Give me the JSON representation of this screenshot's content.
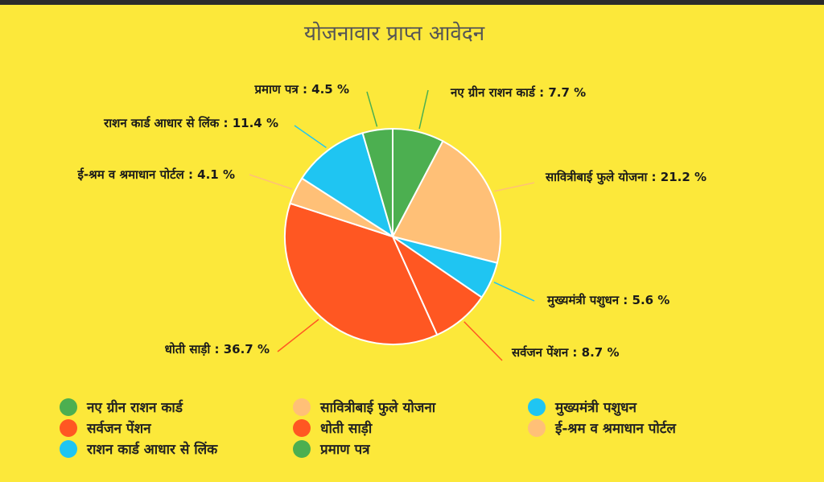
{
  "chart_data": {
    "type": "pie",
    "title": "योजनावार प्राप्त आवेदन",
    "slices": [
      {
        "label": "नए ग्रीन राशन कार्ड",
        "value": 7.7,
        "text": "नए ग्रीन राशन कार्ड : 7.7 %",
        "color": "#4CAF50"
      },
      {
        "label": "सावित्रीबाई फुले योजना",
        "value": 21.2,
        "text": "सावित्रीबाई फुले योजना : 21.2 %",
        "color": "#FFC077"
      },
      {
        "label": "मुख्यमंत्री पशुधन",
        "value": 5.6,
        "text": "मुख्यमंत्री पशुधन : 5.6 %",
        "color": "#1FC5F2"
      },
      {
        "label": "सर्वजन पेंशन",
        "value": 8.7,
        "text": "सर्वजन पेंशन : 8.7 %",
        "color": "#FF5722"
      },
      {
        "label": "धोती साड़ी",
        "value": 36.7,
        "text": "धोती साड़ी : 36.7 %",
        "color": "#FF5722"
      },
      {
        "label": "ई-श्रम व श्रमाधान पोर्टल",
        "value": 4.1,
        "text": "ई-श्रम व श्रमाधान पोर्टल : 4.1 %",
        "color": "#FFC077"
      },
      {
        "label": "राशन कार्ड आधार से लिंक",
        "value": 11.4,
        "text": "राशन कार्ड आधार से लिंक : 11.4 %",
        "color": "#1FC5F2"
      },
      {
        "label": "प्रमाण पत्र",
        "value": 4.5,
        "text": "प्रमाण पत्र : 4.5 %",
        "color": "#4CAF50"
      }
    ],
    "legend_position": "bottom"
  }
}
